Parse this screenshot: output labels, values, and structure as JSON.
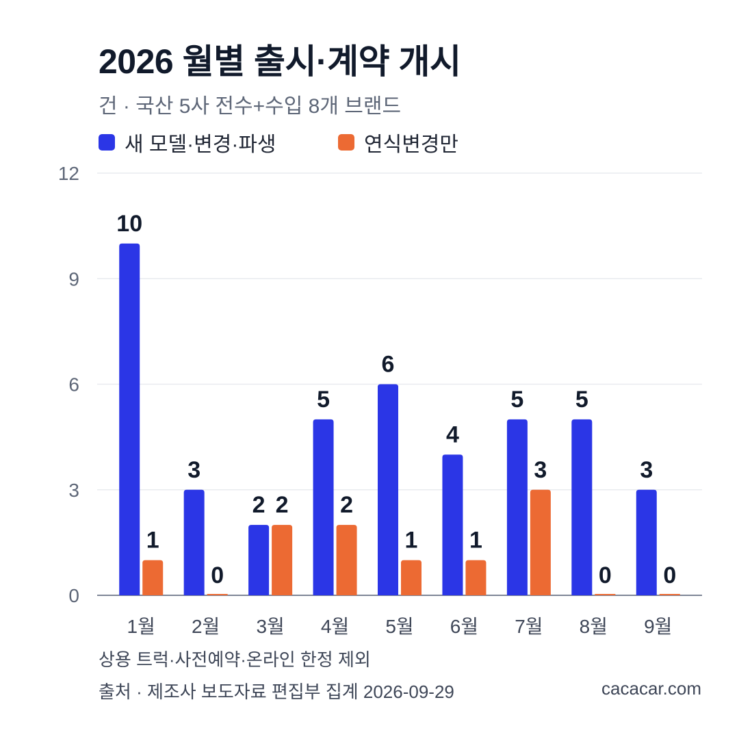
{
  "header": {
    "title": "2026 월별 출시·계약 개시",
    "subtitle": "건 · 국산 5사 전수+수입 8개 브랜드"
  },
  "legend": [
    {
      "label": "새 모델·변경·파생",
      "color": "#2b36e6"
    },
    {
      "label": "연식변경만",
      "color": "#ec6a33"
    }
  ],
  "chart_data": {
    "type": "bar",
    "categories": [
      "1월",
      "2월",
      "3월",
      "4월",
      "5월",
      "6월",
      "7월",
      "8월",
      "9월"
    ],
    "series": [
      {
        "name": "새 모델·변경·파생",
        "color": "#2b36e6",
        "values": [
          10,
          3,
          2,
          5,
          6,
          4,
          5,
          5,
          3
        ]
      },
      {
        "name": "연식변경만",
        "color": "#ec6a33",
        "values": [
          1,
          0,
          2,
          2,
          1,
          1,
          3,
          0,
          0
        ]
      }
    ],
    "ylim": [
      0,
      12
    ],
    "yticks": [
      0,
      3,
      6,
      9,
      12
    ],
    "grid": true,
    "legend_position": "top-left",
    "data_labels": true
  },
  "footer": {
    "note": "상용 트럭·사전예약·온라인 한정 제외",
    "source": "출처 · 제조사 보도자료 편집부 집계 2026-09-29",
    "site": "cacacar.com"
  }
}
